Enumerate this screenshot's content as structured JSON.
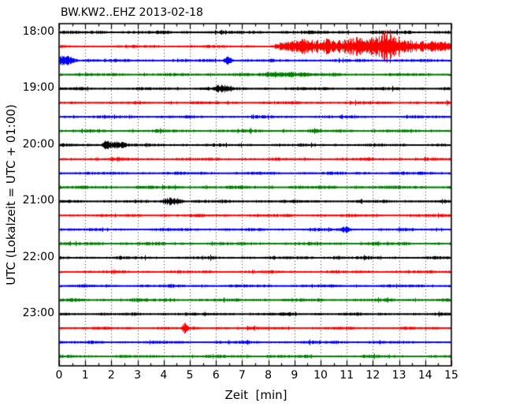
{
  "chart_data": {
    "type": "line",
    "variant": "helicorder-dayplot",
    "title": "BW.KW2..EHZ 2013-02-18",
    "station": "BW.KW2..EHZ",
    "date": "2013-02-18",
    "xlabel": "Zeit  [min]",
    "ylabel": "UTC (Lokalzeit = UTC + 01:00)",
    "xlim": [
      0,
      15
    ],
    "minutes_per_row": 15,
    "x_tick_labels": [
      "0",
      "1",
      "2",
      "3",
      "4",
      "5",
      "6",
      "7",
      "8",
      "9",
      "10",
      "11",
      "12",
      "13",
      "14",
      "15"
    ],
    "x_minor_tick_step": 0.5,
    "grid": {
      "vertical_dotted_every_min": 1,
      "horizontal": false
    },
    "legend": "none",
    "color_cycle": [
      "#000000",
      "#ff0000",
      "#0000ff",
      "#008000"
    ],
    "y_hour_ticks": [
      {
        "row": 0,
        "label": "18:00"
      },
      {
        "row": 4,
        "label": "19:00"
      },
      {
        "row": 8,
        "label": "20:00"
      },
      {
        "row": 12,
        "label": "21:00"
      },
      {
        "row": 16,
        "label": "22:00"
      },
      {
        "row": 20,
        "label": "23:00"
      }
    ],
    "traces": [
      {
        "utc_start": "18:00",
        "color": "#000000",
        "noise_level": 1.15,
        "events": []
      },
      {
        "utc_start": "18:15",
        "color": "#ff0000",
        "noise_level": 1.0,
        "events": [
          {
            "envelope": [
              [
                8.2,
                1
              ],
              [
                8.6,
                3
              ],
              [
                9.0,
                5
              ],
              [
                9.4,
                6
              ],
              [
                9.8,
                4.5
              ],
              [
                10.2,
                6.5
              ],
              [
                10.6,
                4.5
              ],
              [
                11.0,
                5.5
              ],
              [
                11.35,
                8
              ],
              [
                11.7,
                5.5
              ],
              [
                12.0,
                7
              ],
              [
                12.3,
                9
              ],
              [
                12.55,
                15
              ],
              [
                12.8,
                11
              ],
              [
                13.1,
                5.5
              ],
              [
                13.5,
                4.5
              ],
              [
                14.0,
                4
              ],
              [
                14.5,
                3.5
              ],
              [
                15.0,
                3
              ]
            ]
          }
        ]
      },
      {
        "utc_start": "18:30",
        "color": "#0000ff",
        "noise_level": 1.0,
        "events": [
          {
            "envelope": [
              [
                0.0,
                3
              ],
              [
                0.45,
                3.2
              ],
              [
                0.75,
                0
              ]
            ]
          },
          {
            "envelope": [
              [
                6.2,
                0
              ],
              [
                6.45,
                3.2
              ],
              [
                6.7,
                0
              ]
            ]
          }
        ]
      },
      {
        "utc_start": "18:45",
        "color": "#008000",
        "noise_level": 1.1,
        "events": [
          {
            "envelope": [
              [
                7.5,
                0
              ],
              [
                8.2,
                1.6
              ],
              [
                9.4,
                1.4
              ],
              [
                9.9,
                0
              ]
            ]
          }
        ]
      },
      {
        "utc_start": "19:00",
        "color": "#000000",
        "noise_level": 1.0,
        "events": [
          {
            "envelope": [
              [
                5.85,
                0
              ],
              [
                6.1,
                3
              ],
              [
                6.45,
                2
              ],
              [
                6.75,
                0
              ]
            ]
          }
        ]
      },
      {
        "utc_start": "19:15",
        "color": "#ff0000",
        "noise_level": 1.0,
        "events": []
      },
      {
        "utc_start": "19:30",
        "color": "#0000ff",
        "noise_level": 1.0,
        "events": []
      },
      {
        "utc_start": "19:45",
        "color": "#008000",
        "noise_level": 1.1,
        "events": []
      },
      {
        "utc_start": "20:00",
        "color": "#000000",
        "noise_level": 1.0,
        "events": [
          {
            "envelope": [
              [
                1.55,
                0
              ],
              [
                1.8,
                4
              ],
              [
                2.05,
                2.6
              ],
              [
                2.35,
                2.2
              ],
              [
                2.7,
                0
              ]
            ]
          }
        ]
      },
      {
        "utc_start": "20:15",
        "color": "#ff0000",
        "noise_level": 1.0,
        "events": []
      },
      {
        "utc_start": "20:30",
        "color": "#0000ff",
        "noise_level": 1.0,
        "events": []
      },
      {
        "utc_start": "20:45",
        "color": "#008000",
        "noise_level": 1.1,
        "events": []
      },
      {
        "utc_start": "21:00",
        "color": "#000000",
        "noise_level": 1.0,
        "events": [
          {
            "envelope": [
              [
                3.85,
                0
              ],
              [
                4.15,
                2.6
              ],
              [
                4.5,
                2.6
              ],
              [
                4.85,
                0
              ]
            ]
          }
        ]
      },
      {
        "utc_start": "21:15",
        "color": "#ff0000",
        "noise_level": 1.0,
        "events": []
      },
      {
        "utc_start": "21:30",
        "color": "#0000ff",
        "noise_level": 1.0,
        "events": [
          {
            "envelope": [
              [
                10.7,
                0
              ],
              [
                10.95,
                2.2
              ],
              [
                11.2,
                0
              ]
            ]
          }
        ]
      },
      {
        "utc_start": "21:45",
        "color": "#008000",
        "noise_level": 1.1,
        "events": []
      },
      {
        "utc_start": "22:00",
        "color": "#000000",
        "noise_level": 1.05,
        "events": []
      },
      {
        "utc_start": "22:15",
        "color": "#ff0000",
        "noise_level": 1.0,
        "events": []
      },
      {
        "utc_start": "22:30",
        "color": "#0000ff",
        "noise_level": 1.0,
        "events": []
      },
      {
        "utc_start": "22:45",
        "color": "#008000",
        "noise_level": 1.1,
        "events": []
      },
      {
        "utc_start": "23:00",
        "color": "#000000",
        "noise_level": 1.0,
        "events": []
      },
      {
        "utc_start": "23:15",
        "color": "#ff0000",
        "noise_level": 1.0,
        "events": [
          {
            "envelope": [
              [
                4.65,
                0
              ],
              [
                4.8,
                4
              ],
              [
                4.95,
                0
              ]
            ]
          }
        ]
      },
      {
        "utc_start": "23:30",
        "color": "#0000ff",
        "noise_level": 1.0,
        "events": []
      },
      {
        "utc_start": "23:45",
        "color": "#008000",
        "noise_level": 1.05,
        "events": []
      }
    ]
  }
}
